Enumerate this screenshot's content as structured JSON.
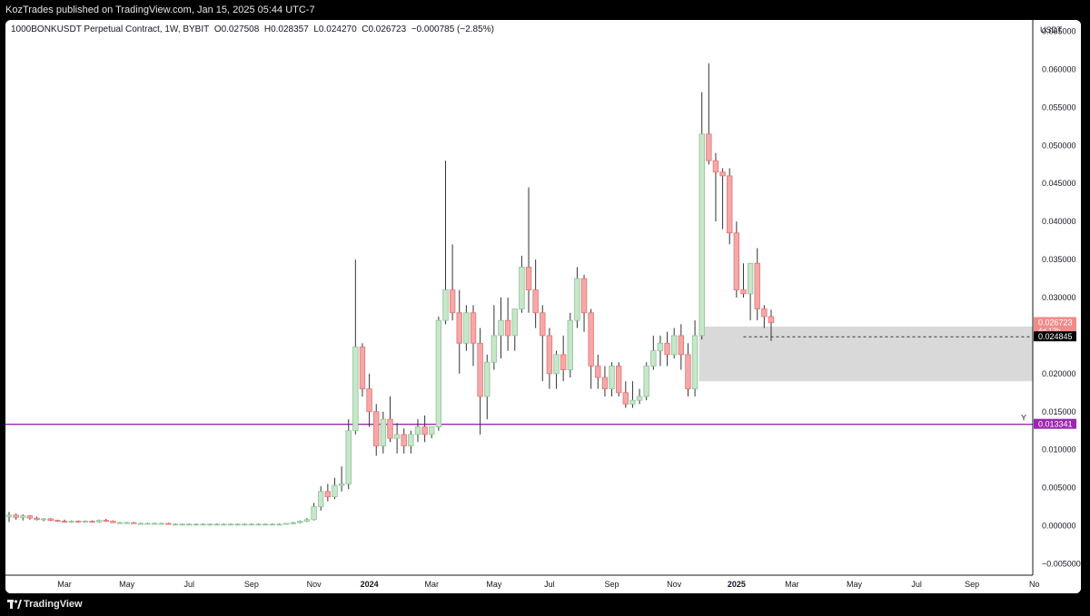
{
  "header": {
    "published_text": "KozTrades published on TradingView.com, Jan 15, 2025 05:44 UTC-7"
  },
  "legend": {
    "symbol_text": "1000BONKUSDT Perpetual Contract, 1W, BYBIT",
    "open": "O0.027508",
    "high": "H0.028357",
    "low": "L0.024270",
    "close": "C0.026723",
    "change": "−0.000785 (−2.85%)"
  },
  "footer": {
    "brand": "TradingView"
  },
  "colors": {
    "up": "#8cc49a",
    "up_fill": "#c8e6c9",
    "down": "#e57373",
    "down_fill": "#f4a9a8",
    "wick": "#333333",
    "zone": "#d9d9d9",
    "support_line": "#9c27b0",
    "price_badge": "#f28b8b",
    "dark_badge": "#000000"
  },
  "chart_data": {
    "type": "candlestick",
    "price_axis_label": "USDT",
    "ylim": [
      -0.0065,
      0.0665
    ],
    "y_ticks": [
      -0.005,
      0.0,
      0.005,
      0.01,
      0.015,
      0.02,
      0.025,
      0.03,
      0.035,
      0.04,
      0.045,
      0.05,
      0.055,
      0.06,
      0.065
    ],
    "y_tick_labels": [
      "−0.005000",
      "0.000000",
      "0.005000",
      "0.010000",
      "0.015000",
      "0.020000",
      "0.025000",
      "0.030000",
      "0.035000",
      "0.040000",
      "0.045000",
      "0.050000",
      "0.055000",
      "0.060000",
      "0.065000"
    ],
    "x_ticks": [
      {
        "label": "Mar",
        "week": 8,
        "bold": false
      },
      {
        "label": "May",
        "week": 17,
        "bold": false
      },
      {
        "label": "Jul",
        "week": 26,
        "bold": false
      },
      {
        "label": "Sep",
        "week": 35,
        "bold": false
      },
      {
        "label": "Nov",
        "week": 44,
        "bold": false
      },
      {
        "label": "2024",
        "week": 52,
        "bold": true
      },
      {
        "label": "Mar",
        "week": 61,
        "bold": false
      },
      {
        "label": "May",
        "week": 70,
        "bold": false
      },
      {
        "label": "Jul",
        "week": 78,
        "bold": false
      },
      {
        "label": "Sep",
        "week": 87,
        "bold": false
      },
      {
        "label": "Nov",
        "week": 96,
        "bold": false
      },
      {
        "label": "2025",
        "week": 105,
        "bold": true
      },
      {
        "label": "Mar",
        "week": 113,
        "bold": false
      },
      {
        "label": "May",
        "week": 122,
        "bold": false
      },
      {
        "label": "Jul",
        "week": 131,
        "bold": false
      },
      {
        "label": "Sep",
        "week": 139,
        "bold": false
      },
      {
        "label": "No",
        "week": 148,
        "bold": false
      }
    ],
    "candles": [
      [
        0.0012,
        0.0018,
        0.0005,
        0.0014
      ],
      [
        0.0014,
        0.0016,
        0.0008,
        0.0011
      ],
      [
        0.0011,
        0.0015,
        0.0007,
        0.0013
      ],
      [
        0.0013,
        0.0014,
        0.0008,
        0.001
      ],
      [
        0.001,
        0.0012,
        0.0007,
        0.0008
      ],
      [
        0.0008,
        0.001,
        0.0006,
        0.0009
      ],
      [
        0.0009,
        0.001,
        0.0006,
        0.0007
      ],
      [
        0.0007,
        0.0008,
        0.0005,
        0.0006
      ],
      [
        0.0006,
        0.0008,
        0.0004,
        0.0005
      ],
      [
        0.0005,
        0.0007,
        0.0004,
        0.0006
      ],
      [
        0.0006,
        0.0007,
        0.0004,
        0.0005
      ],
      [
        0.0005,
        0.0007,
        0.0004,
        0.0006
      ],
      [
        0.0006,
        0.0007,
        0.0004,
        0.0005
      ],
      [
        0.0005,
        0.0008,
        0.0004,
        0.0007
      ],
      [
        0.0007,
        0.0009,
        0.0005,
        0.0006
      ],
      [
        0.0006,
        0.0007,
        0.0004,
        0.0004
      ],
      [
        0.0004,
        0.0005,
        0.0003,
        0.0004
      ],
      [
        0.0004,
        0.0005,
        0.0003,
        0.0004
      ],
      [
        0.0004,
        0.0005,
        0.0003,
        0.0003
      ],
      [
        0.0003,
        0.0004,
        0.0003,
        0.0003
      ],
      [
        0.0003,
        0.0004,
        0.0002,
        0.0003
      ],
      [
        0.0003,
        0.0004,
        0.0002,
        0.0003
      ],
      [
        0.0003,
        0.0004,
        0.0002,
        0.0003
      ],
      [
        0.0003,
        0.0004,
        0.0002,
        0.0002
      ],
      [
        0.0002,
        0.0003,
        0.0002,
        0.0002
      ],
      [
        0.0002,
        0.0003,
        0.0002,
        0.0002
      ],
      [
        0.0002,
        0.0003,
        0.0002,
        0.0002
      ],
      [
        0.0002,
        0.0003,
        0.0002,
        0.0002
      ],
      [
        0.0002,
        0.0003,
        0.0002,
        0.0002
      ],
      [
        0.0002,
        0.0003,
        0.0002,
        0.0002
      ],
      [
        0.0002,
        0.0003,
        0.0002,
        0.0002
      ],
      [
        0.0002,
        0.0003,
        0.0002,
        0.0002
      ],
      [
        0.0002,
        0.0003,
        0.0002,
        0.0002
      ],
      [
        0.0002,
        0.0003,
        0.0002,
        0.0002
      ],
      [
        0.0002,
        0.0003,
        0.0002,
        0.0002
      ],
      [
        0.0002,
        0.0003,
        0.0002,
        0.0002
      ],
      [
        0.0002,
        0.0003,
        0.0002,
        0.0002
      ],
      [
        0.0002,
        0.0003,
        0.0002,
        0.0002
      ],
      [
        0.0002,
        0.0003,
        0.0002,
        0.0002
      ],
      [
        0.0002,
        0.0003,
        0.0002,
        0.0002
      ],
      [
        0.0002,
        0.0003,
        0.0002,
        0.0003
      ],
      [
        0.0003,
        0.0005,
        0.0002,
        0.0004
      ],
      [
        0.0004,
        0.0007,
        0.0003,
        0.0006
      ],
      [
        0.0006,
        0.001,
        0.0005,
        0.0008
      ],
      [
        0.0008,
        0.003,
        0.0007,
        0.0025
      ],
      [
        0.0025,
        0.0052,
        0.002,
        0.0045
      ],
      [
        0.0045,
        0.0055,
        0.0032,
        0.0038
      ],
      [
        0.0038,
        0.0063,
        0.0035,
        0.0053
      ],
      [
        0.0053,
        0.0078,
        0.0045,
        0.0055
      ],
      [
        0.0055,
        0.014,
        0.0048,
        0.0125
      ],
      [
        0.0125,
        0.035,
        0.012,
        0.0235
      ],
      [
        0.0235,
        0.024,
        0.017,
        0.018
      ],
      [
        0.018,
        0.02,
        0.013,
        0.015
      ],
      [
        0.015,
        0.016,
        0.0092,
        0.0105
      ],
      [
        0.0105,
        0.015,
        0.0095,
        0.014
      ],
      [
        0.014,
        0.017,
        0.011,
        0.0115
      ],
      [
        0.0115,
        0.0135,
        0.0095,
        0.012
      ],
      [
        0.012,
        0.0128,
        0.0095,
        0.0105
      ],
      [
        0.0105,
        0.0125,
        0.0095,
        0.012
      ],
      [
        0.012,
        0.014,
        0.011,
        0.013
      ],
      [
        0.013,
        0.0145,
        0.011,
        0.012
      ],
      [
        0.012,
        0.013,
        0.0115,
        0.013
      ],
      [
        0.013,
        0.0275,
        0.0125,
        0.027
      ],
      [
        0.027,
        0.048,
        0.0265,
        0.031
      ],
      [
        0.031,
        0.037,
        0.027,
        0.028
      ],
      [
        0.028,
        0.031,
        0.02,
        0.024
      ],
      [
        0.024,
        0.029,
        0.023,
        0.028
      ],
      [
        0.028,
        0.029,
        0.021,
        0.024
      ],
      [
        0.024,
        0.026,
        0.012,
        0.017
      ],
      [
        0.017,
        0.0225,
        0.014,
        0.0215
      ],
      [
        0.0215,
        0.029,
        0.0205,
        0.025
      ],
      [
        0.025,
        0.03,
        0.022,
        0.027
      ],
      [
        0.027,
        0.03,
        0.023,
        0.025
      ],
      [
        0.025,
        0.0285,
        0.023,
        0.0285
      ],
      [
        0.0285,
        0.0355,
        0.028,
        0.034
      ],
      [
        0.034,
        0.0445,
        0.028,
        0.031
      ],
      [
        0.031,
        0.035,
        0.026,
        0.028
      ],
      [
        0.028,
        0.029,
        0.019,
        0.025
      ],
      [
        0.025,
        0.026,
        0.018,
        0.02
      ],
      [
        0.02,
        0.023,
        0.018,
        0.0225
      ],
      [
        0.0225,
        0.025,
        0.019,
        0.0205
      ],
      [
        0.0205,
        0.028,
        0.0195,
        0.027
      ],
      [
        0.027,
        0.034,
        0.026,
        0.0325
      ],
      [
        0.0325,
        0.033,
        0.0255,
        0.028
      ],
      [
        0.028,
        0.0285,
        0.018,
        0.021
      ],
      [
        0.021,
        0.0225,
        0.018,
        0.0195
      ],
      [
        0.0195,
        0.021,
        0.017,
        0.018
      ],
      [
        0.018,
        0.0215,
        0.017,
        0.021
      ],
      [
        0.021,
        0.0215,
        0.017,
        0.0175
      ],
      [
        0.0175,
        0.019,
        0.0155,
        0.016
      ],
      [
        0.016,
        0.019,
        0.0155,
        0.0165
      ],
      [
        0.0165,
        0.018,
        0.016,
        0.017
      ],
      [
        0.017,
        0.0215,
        0.0165,
        0.021
      ],
      [
        0.021,
        0.025,
        0.0205,
        0.023
      ],
      [
        0.023,
        0.025,
        0.021,
        0.024
      ],
      [
        0.024,
        0.0255,
        0.021,
        0.0225
      ],
      [
        0.0225,
        0.026,
        0.022,
        0.025
      ],
      [
        0.025,
        0.0265,
        0.0205,
        0.0225
      ],
      [
        0.0225,
        0.024,
        0.017,
        0.018
      ],
      [
        0.018,
        0.027,
        0.017,
        0.025
      ],
      [
        0.025,
        0.057,
        0.0245,
        0.0515
      ],
      [
        0.0515,
        0.0608,
        0.0475,
        0.048
      ],
      [
        0.048,
        0.049,
        0.04,
        0.0465
      ],
      [
        0.0465,
        0.047,
        0.039,
        0.046
      ],
      [
        0.046,
        0.047,
        0.037,
        0.0385
      ],
      [
        0.0385,
        0.04,
        0.03,
        0.031
      ],
      [
        0.031,
        0.0345,
        0.03,
        0.0305
      ],
      [
        0.0305,
        0.0345,
        0.027,
        0.0345
      ],
      [
        0.0345,
        0.0365,
        0.027,
        0.0285
      ],
      [
        0.0285,
        0.029,
        0.026,
        0.0275
      ],
      [
        0.0275,
        0.0284,
        0.0243,
        0.0267
      ]
    ],
    "support_zone": {
      "from_week": 100,
      "top": 0.0262,
      "bottom": 0.019
    },
    "dashed_level": {
      "from_week": 106,
      "value": 0.024845,
      "label": "0.024845"
    },
    "horizontal_line": {
      "value": 0.013341,
      "label": "0.013341",
      "tag": "Y"
    },
    "last_price": {
      "value": 0.026723,
      "label": "0.026723",
      "countdown": "4d 12h"
    }
  }
}
